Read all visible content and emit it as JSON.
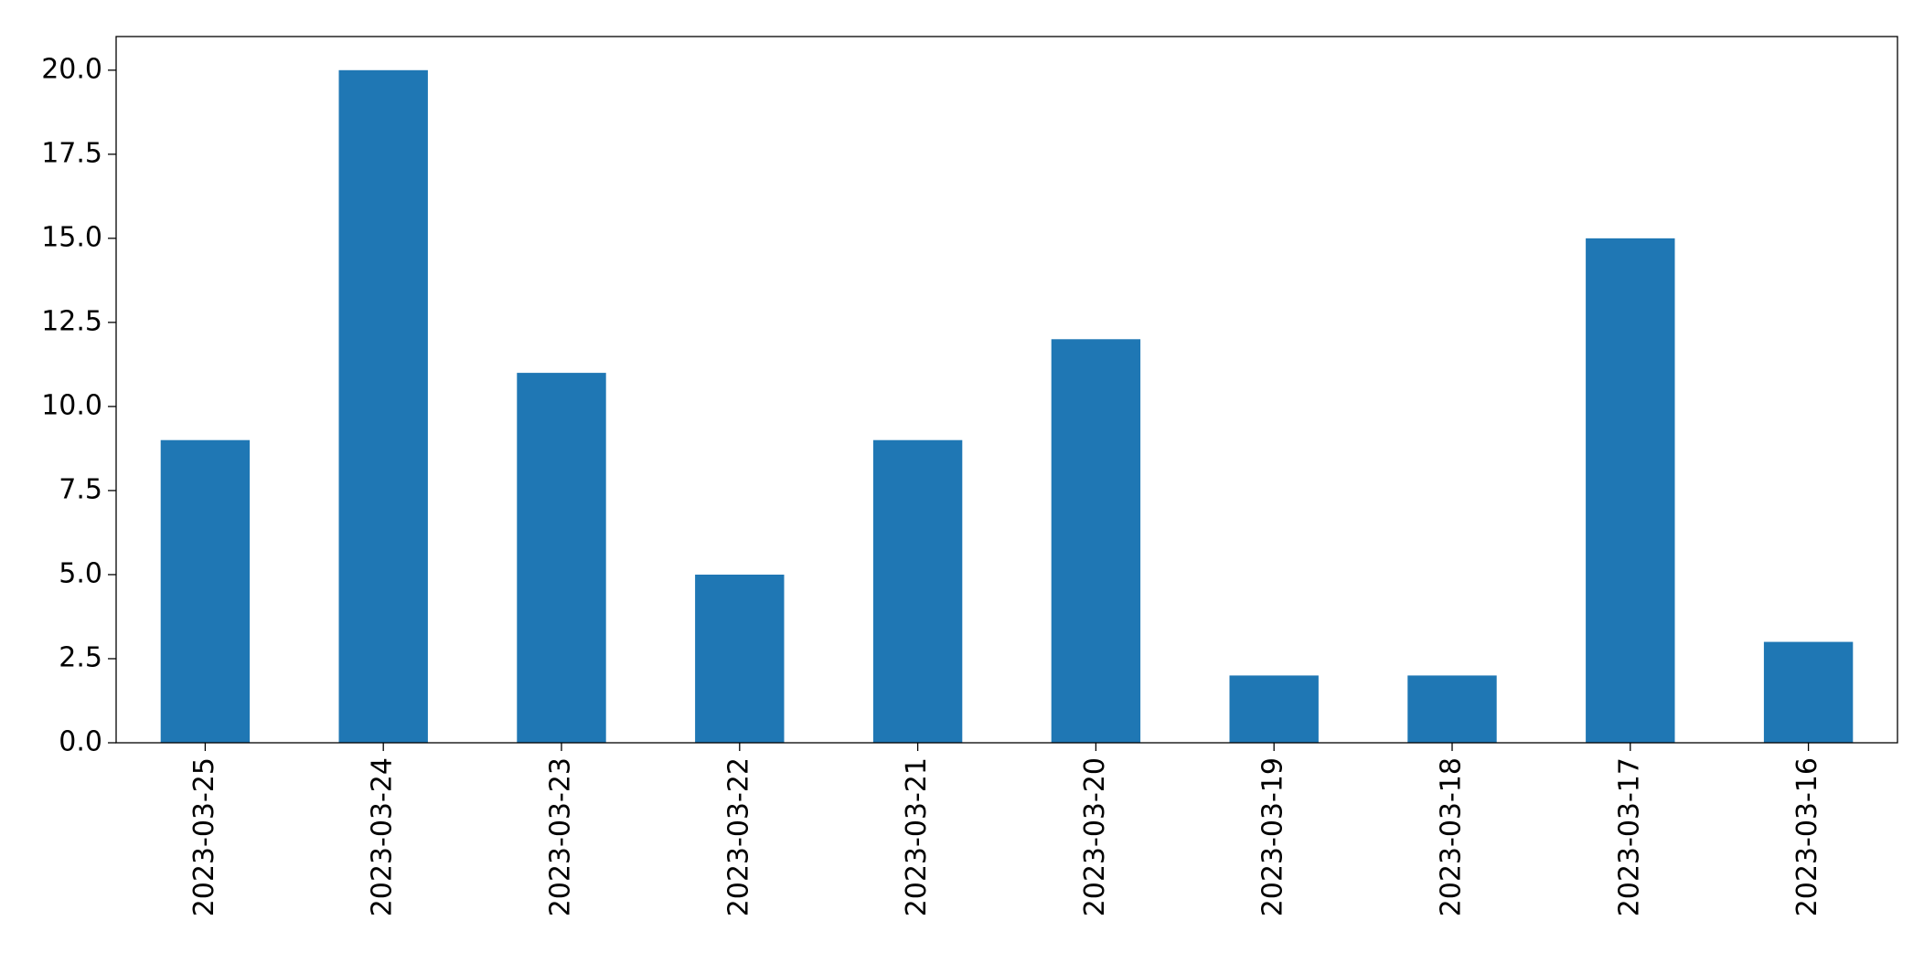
{
  "chart_data": {
    "type": "bar",
    "categories": [
      "2023-03-25",
      "2023-03-24",
      "2023-03-23",
      "2023-03-22",
      "2023-03-21",
      "2023-03-20",
      "2023-03-19",
      "2023-03-18",
      "2023-03-17",
      "2023-03-16"
    ],
    "values": [
      9,
      20,
      11,
      5,
      9,
      12,
      2,
      2,
      15,
      3
    ],
    "color": "#1f77b4",
    "ylim": [
      0,
      21
    ],
    "yticks": [
      {
        "value": 0,
        "label": "0.0"
      },
      2.5,
      {
        "value": 5,
        "label": "5.0"
      },
      7.5,
      {
        "value": 10,
        "label": "10.0"
      },
      12.5,
      {
        "value": 15,
        "label": "15.0"
      },
      17.5,
      {
        "value": 20,
        "label": "20.0"
      }
    ],
    "grid": false
  }
}
